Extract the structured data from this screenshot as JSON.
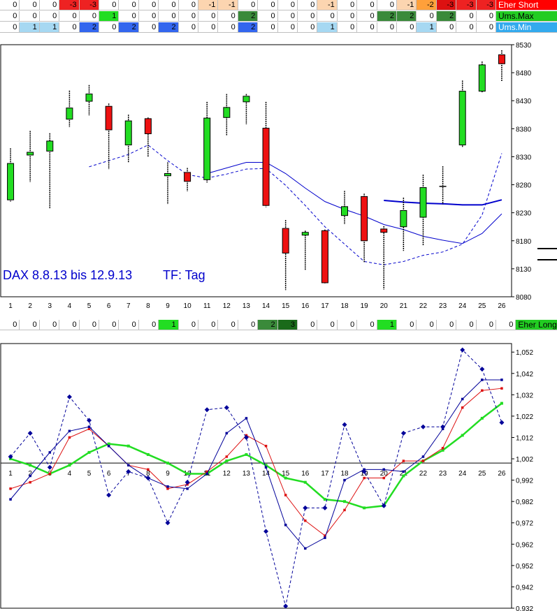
{
  "colors": {
    "up": "#22dd22",
    "down": "#ee1111",
    "ma_blue": "#0000cc",
    "short_bg": "#ff0000",
    "max_bg": "#22cc22",
    "min_bg": "#33aaee",
    "long_bg": "#22cc22",
    "band_light": "#a6d8f2",
    "band_blue": "#3366ee",
    "band_green": "#22dd22",
    "band_orange": "#fcd5b0",
    "band_red": "#ee2222",
    "band_red_dark": "#dd1111",
    "band_orange_strong": "#ffa03a",
    "band_green_dark": "#3a8a3a",
    "band_green_darker": "#1a6a1a"
  },
  "top_rows": [
    {
      "label": "Eher Short",
      "label_bg": "#ff0000",
      "label_color": "#ffffff",
      "values": [
        "0",
        "0",
        "0",
        "-3",
        "-3",
        "0",
        "0",
        "0",
        "0",
        "0",
        "-1",
        "-1",
        "0",
        "0",
        "0",
        "0",
        "-1",
        "0",
        "0",
        "0",
        "-1",
        "-2",
        "-3",
        "-3",
        "-3"
      ],
      "bgs": [
        "",
        "",
        "",
        "#ee2222",
        "#ee2222",
        "",
        "",
        "",
        "",
        "",
        "#fcd5b0",
        "#fcd5b0",
        "",
        "",
        "",
        "",
        "#fcd5b0",
        "",
        "",
        "",
        "#fcd5b0",
        "#ffa03a",
        "#dd1111",
        "#ee2222",
        "#ee2222"
      ]
    },
    {
      "label": "Ums.Max",
      "label_bg": "#22cc22",
      "label_color": "#000000",
      "values": [
        "0",
        "0",
        "0",
        "0",
        "0",
        "1",
        "0",
        "0",
        "0",
        "0",
        "0",
        "0",
        "2",
        "0",
        "0",
        "0",
        "0",
        "0",
        "0",
        "2",
        "2",
        "0",
        "2",
        "0",
        "0"
      ],
      "bgs": [
        "",
        "",
        "",
        "",
        "",
        "#22dd22",
        "",
        "",
        "",
        "",
        "",
        "",
        "#3a8a3a",
        "",
        "",
        "",
        "",
        "",
        "",
        "#3a8a3a",
        "#3a8a3a",
        "",
        "#3a8a3a",
        "",
        ""
      ]
    },
    {
      "label": "Ums.Min",
      "label_bg": "#33aaee",
      "label_color": "#ffffff",
      "values": [
        "0",
        "1",
        "1",
        "0",
        "2",
        "0",
        "2",
        "0",
        "2",
        "0",
        "0",
        "0",
        "2",
        "0",
        "0",
        "0",
        "1",
        "0",
        "0",
        "0",
        "0",
        "1",
        "0",
        "0",
        "0"
      ],
      "bgs": [
        "",
        "#a6d8f2",
        "#a6d8f2",
        "",
        "#3366ee",
        "",
        "#3366ee",
        "",
        "#3366ee",
        "",
        "",
        "",
        "#3366ee",
        "",
        "",
        "",
        "#a6d8f2",
        "",
        "",
        "",
        "",
        "#a6d8f2",
        "",
        "",
        ""
      ]
    }
  ],
  "long_row": {
    "label": "Eher Long",
    "label_bg": "#22cc22",
    "label_color": "#000000",
    "values": [
      "0",
      "0",
      "0",
      "0",
      "0",
      "0",
      "0",
      "0",
      "1",
      "0",
      "0",
      "0",
      "0",
      "2",
      "3",
      "0",
      "0",
      "0",
      "0",
      "1",
      "0",
      "0",
      "0",
      "0",
      "0",
      "0"
    ],
    "bgs": [
      "",
      "",
      "",
      "",
      "",
      "",
      "",
      "",
      "#22dd22",
      "",
      "",
      "",
      "",
      "#3a8a3a",
      "#1a6a1a",
      "",
      "",
      "",
      "",
      "#22dd22",
      "",
      "",
      "",
      "",
      "",
      ""
    ]
  },
  "chart_data": [
    {
      "type": "candlestick",
      "title": "DAX 8.8.13 bis 12.9.13",
      "subtitle": "TF: Tag",
      "x": [
        "1",
        "2",
        "3",
        "4",
        "5",
        "6",
        "7",
        "8",
        "9",
        "10",
        "11",
        "12",
        "13",
        "14",
        "15",
        "16",
        "17",
        "18",
        "19",
        "20",
        "21",
        "22",
        "23",
        "24",
        "25",
        "26"
      ],
      "ylim": [
        8080,
        8530
      ],
      "yticks": [
        8080,
        8130,
        8180,
        8230,
        8280,
        8330,
        8380,
        8430,
        8480,
        8530
      ],
      "candles": [
        {
          "o": 8253,
          "c": 8318,
          "h": 8345,
          "l": 8250
        },
        {
          "o": 8333,
          "c": 8338,
          "h": 8376,
          "l": 8285
        },
        {
          "o": 8340,
          "c": 8358,
          "h": 8372,
          "l": 8237
        },
        {
          "o": 8397,
          "c": 8417,
          "h": 8448,
          "l": 8383
        },
        {
          "o": 8429,
          "c": 8442,
          "h": 8458,
          "l": 8404
        },
        {
          "o": 8420,
          "c": 8378,
          "h": 8425,
          "l": 8308
        },
        {
          "o": 8351,
          "c": 8394,
          "h": 8405,
          "l": 8320
        },
        {
          "o": 8398,
          "c": 8371,
          "h": 8400,
          "l": 8329
        },
        {
          "o": 8296,
          "c": 8300,
          "h": 8320,
          "l": 8245
        },
        {
          "o": 8302,
          "c": 8286,
          "h": 8310,
          "l": 8268
        },
        {
          "o": 8289,
          "c": 8399,
          "h": 8428,
          "l": 8284
        },
        {
          "o": 8400,
          "c": 8418,
          "h": 8442,
          "l": 8368
        },
        {
          "o": 8428,
          "c": 8438,
          "h": 8442,
          "l": 8388
        },
        {
          "o": 8381,
          "c": 8243,
          "h": 8428,
          "l": 8240
        },
        {
          "o": 8202,
          "c": 8158,
          "h": 8217,
          "l": 8092
        },
        {
          "o": 8190,
          "c": 8195,
          "h": 8198,
          "l": 8128
        },
        {
          "o": 8198,
          "c": 8105,
          "h": 8200,
          "l": 8103
        },
        {
          "o": 8225,
          "c": 8241,
          "h": 8269,
          "l": 8209
        },
        {
          "o": 8259,
          "c": 8180,
          "h": 8264,
          "l": 8141
        },
        {
          "o": 8201,
          "c": 8195,
          "h": 8206,
          "l": 8093
        },
        {
          "o": 8205,
          "c": 8234,
          "h": 8257,
          "l": 8162
        },
        {
          "o": 8222,
          "c": 8275,
          "h": 8298,
          "l": 8172
        },
        {
          "o": 8277,
          "c": 8277,
          "h": 8313,
          "l": 8245
        },
        {
          "o": 8351,
          "c": 8447,
          "h": 8466,
          "l": 8347
        },
        {
          "o": 8447,
          "c": 8494,
          "h": 8500,
          "l": 8445
        },
        {
          "o": 8512,
          "c": 8496,
          "h": 8520,
          "l": 8465
        }
      ],
      "series": [
        {
          "style": "solid-thin",
          "values": [
            null,
            null,
            null,
            null,
            null,
            null,
            null,
            null,
            null,
            null,
            8300,
            8310,
            8320,
            8320,
            8300,
            8274,
            8250,
            8236,
            8224,
            8209,
            8200,
            8188,
            8181,
            8175,
            8193,
            8228
          ]
        },
        {
          "style": "dashed",
          "values": [
            null,
            null,
            null,
            null,
            8312,
            8323,
            8334,
            8351,
            8323,
            8298,
            8292,
            8299,
            8308,
            8309,
            8279,
            8243,
            8205,
            8174,
            8143,
            8137,
            8143,
            8154,
            8160,
            8174,
            8226,
            8336
          ]
        },
        {
          "style": "solid-thick",
          "values": [
            null,
            null,
            null,
            null,
            null,
            null,
            null,
            null,
            null,
            null,
            null,
            null,
            null,
            null,
            null,
            null,
            null,
            null,
            null,
            8252,
            8249,
            8247,
            8246,
            8244,
            8244,
            8253
          ]
        }
      ],
      "grid": false
    },
    {
      "type": "line",
      "x": [
        "1",
        "2",
        "3",
        "4",
        "5",
        "6",
        "7",
        "8",
        "9",
        "10",
        "11",
        "12",
        "13",
        "14",
        "15",
        "16",
        "17",
        "18",
        "19",
        "20",
        "21",
        "22",
        "23",
        "24",
        "25",
        "26"
      ],
      "ylim": [
        0.932,
        1.056
      ],
      "yticks": [
        "0,932",
        "0,942",
        "0,952",
        "0,962",
        "0,972",
        "0,982",
        "0,992",
        "1,002",
        "1,012",
        "1,022",
        "1,032",
        "1,042",
        "1,052"
      ],
      "baseline": 1.0,
      "series": [
        {
          "color": "#22dd22",
          "style": "thick",
          "marker": "square",
          "values": [
            1.002,
            0.999,
            0.995,
            0.999,
            1.005,
            1.009,
            1.008,
            1.004,
            1.0,
            0.995,
            0.995,
            1.001,
            1.004,
            0.999,
            0.993,
            0.991,
            0.983,
            0.982,
            0.979,
            0.98,
            0.994,
            1.001,
            1.006,
            1.013,
            1.021,
            1.028
          ]
        },
        {
          "color": "#dd1111",
          "style": "solid",
          "marker": "square",
          "values": [
            0.988,
            0.991,
            0.995,
            1.012,
            1.016,
            1.008,
            0.999,
            0.997,
            0.988,
            0.99,
            0.996,
            1.003,
            1.013,
            1.008,
            0.985,
            0.973,
            0.966,
            0.978,
            0.993,
            0.993,
            1.001,
            1.001,
            1.007,
            1.026,
            1.034,
            1.035
          ]
        },
        {
          "color": "#000099",
          "style": "solid",
          "marker": "square",
          "values": [
            0.983,
            0.994,
            1.005,
            1.015,
            1.017,
            1.008,
            0.999,
            0.993,
            0.989,
            0.988,
            0.995,
            1.014,
            1.021,
            0.998,
            0.971,
            0.96,
            0.965,
            0.992,
            0.997,
            0.997,
            0.996,
            1.003,
            1.016,
            1.03,
            1.039,
            1.039
          ]
        },
        {
          "color": "#000099",
          "style": "dashed",
          "marker": "diamond",
          "values": [
            1.003,
            1.014,
            0.998,
            1.031,
            1.02,
            0.985,
            0.996,
            0.993,
            0.972,
            0.991,
            1.025,
            1.026,
            1.012,
            0.968,
            0.933,
            0.979,
            0.979,
            1.018,
            0.996,
            0.98,
            1.014,
            1.017,
            1.017,
            1.053,
            1.044,
            1.019
          ]
        }
      ]
    }
  ]
}
